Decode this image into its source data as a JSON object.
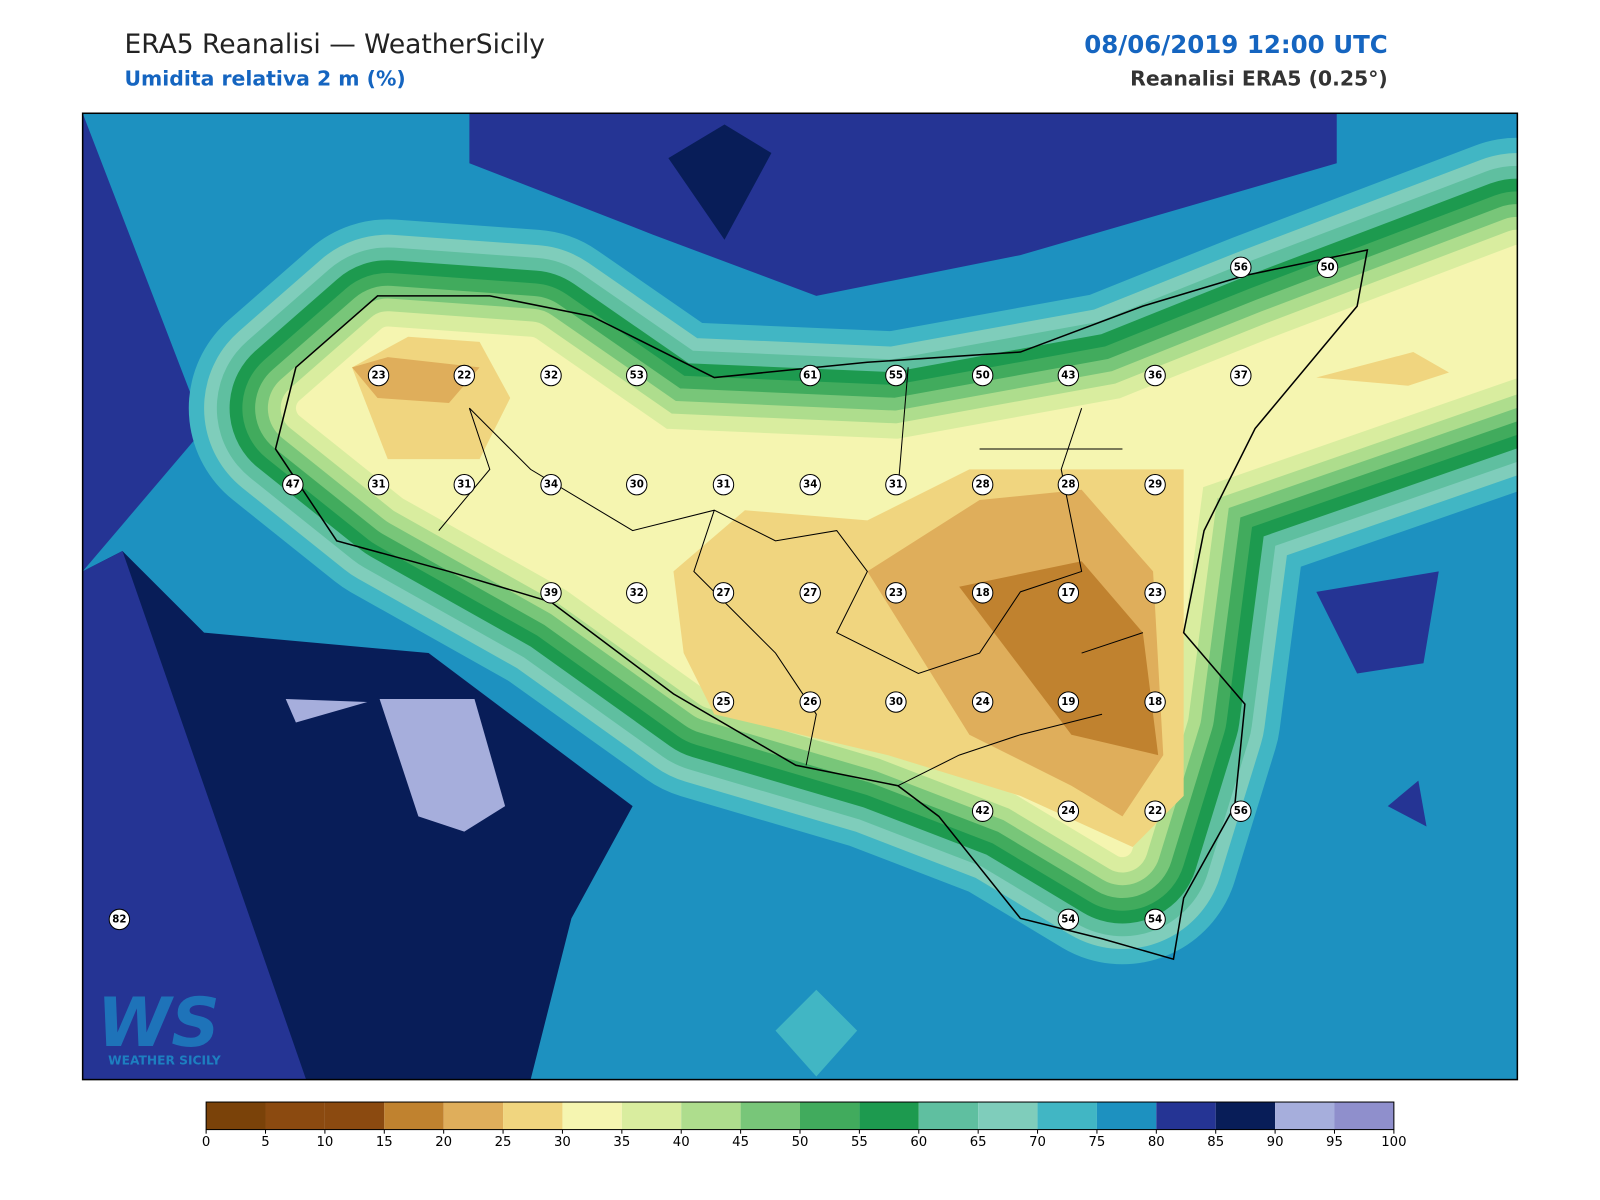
{
  "header": {
    "title": "ERA5 Reanalisi — WeatherSicily",
    "subtitle": "Umidita relativa 2 m (%)",
    "datetime": "08/06/2019 12:00 UTC",
    "source": "Reanalisi ERA5 (0.25°)"
  },
  "map": {
    "stations": [
      56,
      50,
      23,
      22,
      32,
      53,
      61,
      55,
      50,
      43,
      36,
      37,
      47,
      31,
      31,
      34,
      30,
      31,
      34,
      31,
      28,
      28,
      29,
      39,
      32,
      27,
      27,
      23,
      18,
      17,
      23,
      25,
      26,
      30,
      24,
      19,
      18,
      42,
      24,
      22,
      56,
      82,
      54,
      54
    ]
  },
  "logo": {
    "mark": "WS",
    "text": "WEATHER SICILY"
  },
  "colorbar": {
    "ticks": [
      0,
      5,
      10,
      15,
      20,
      25,
      30,
      35,
      40,
      45,
      50,
      55,
      60,
      65,
      70,
      75,
      80,
      85,
      90,
      95,
      100
    ],
    "colors": [
      "#7a4209",
      "#8b4a10",
      "#8b4a10",
      "#c0822f",
      "#dfae5b",
      "#f0d57f",
      "#f5f5b0",
      "#d9ed9f",
      "#aedd8d",
      "#78c679",
      "#41ab5d",
      "#1d9a4f",
      "#5fbfa0",
      "#7fcdbb",
      "#41b6c4",
      "#1d91c0",
      "#253494",
      "#081d58",
      "#a6aedc",
      "#8f8fcc"
    ]
  }
}
